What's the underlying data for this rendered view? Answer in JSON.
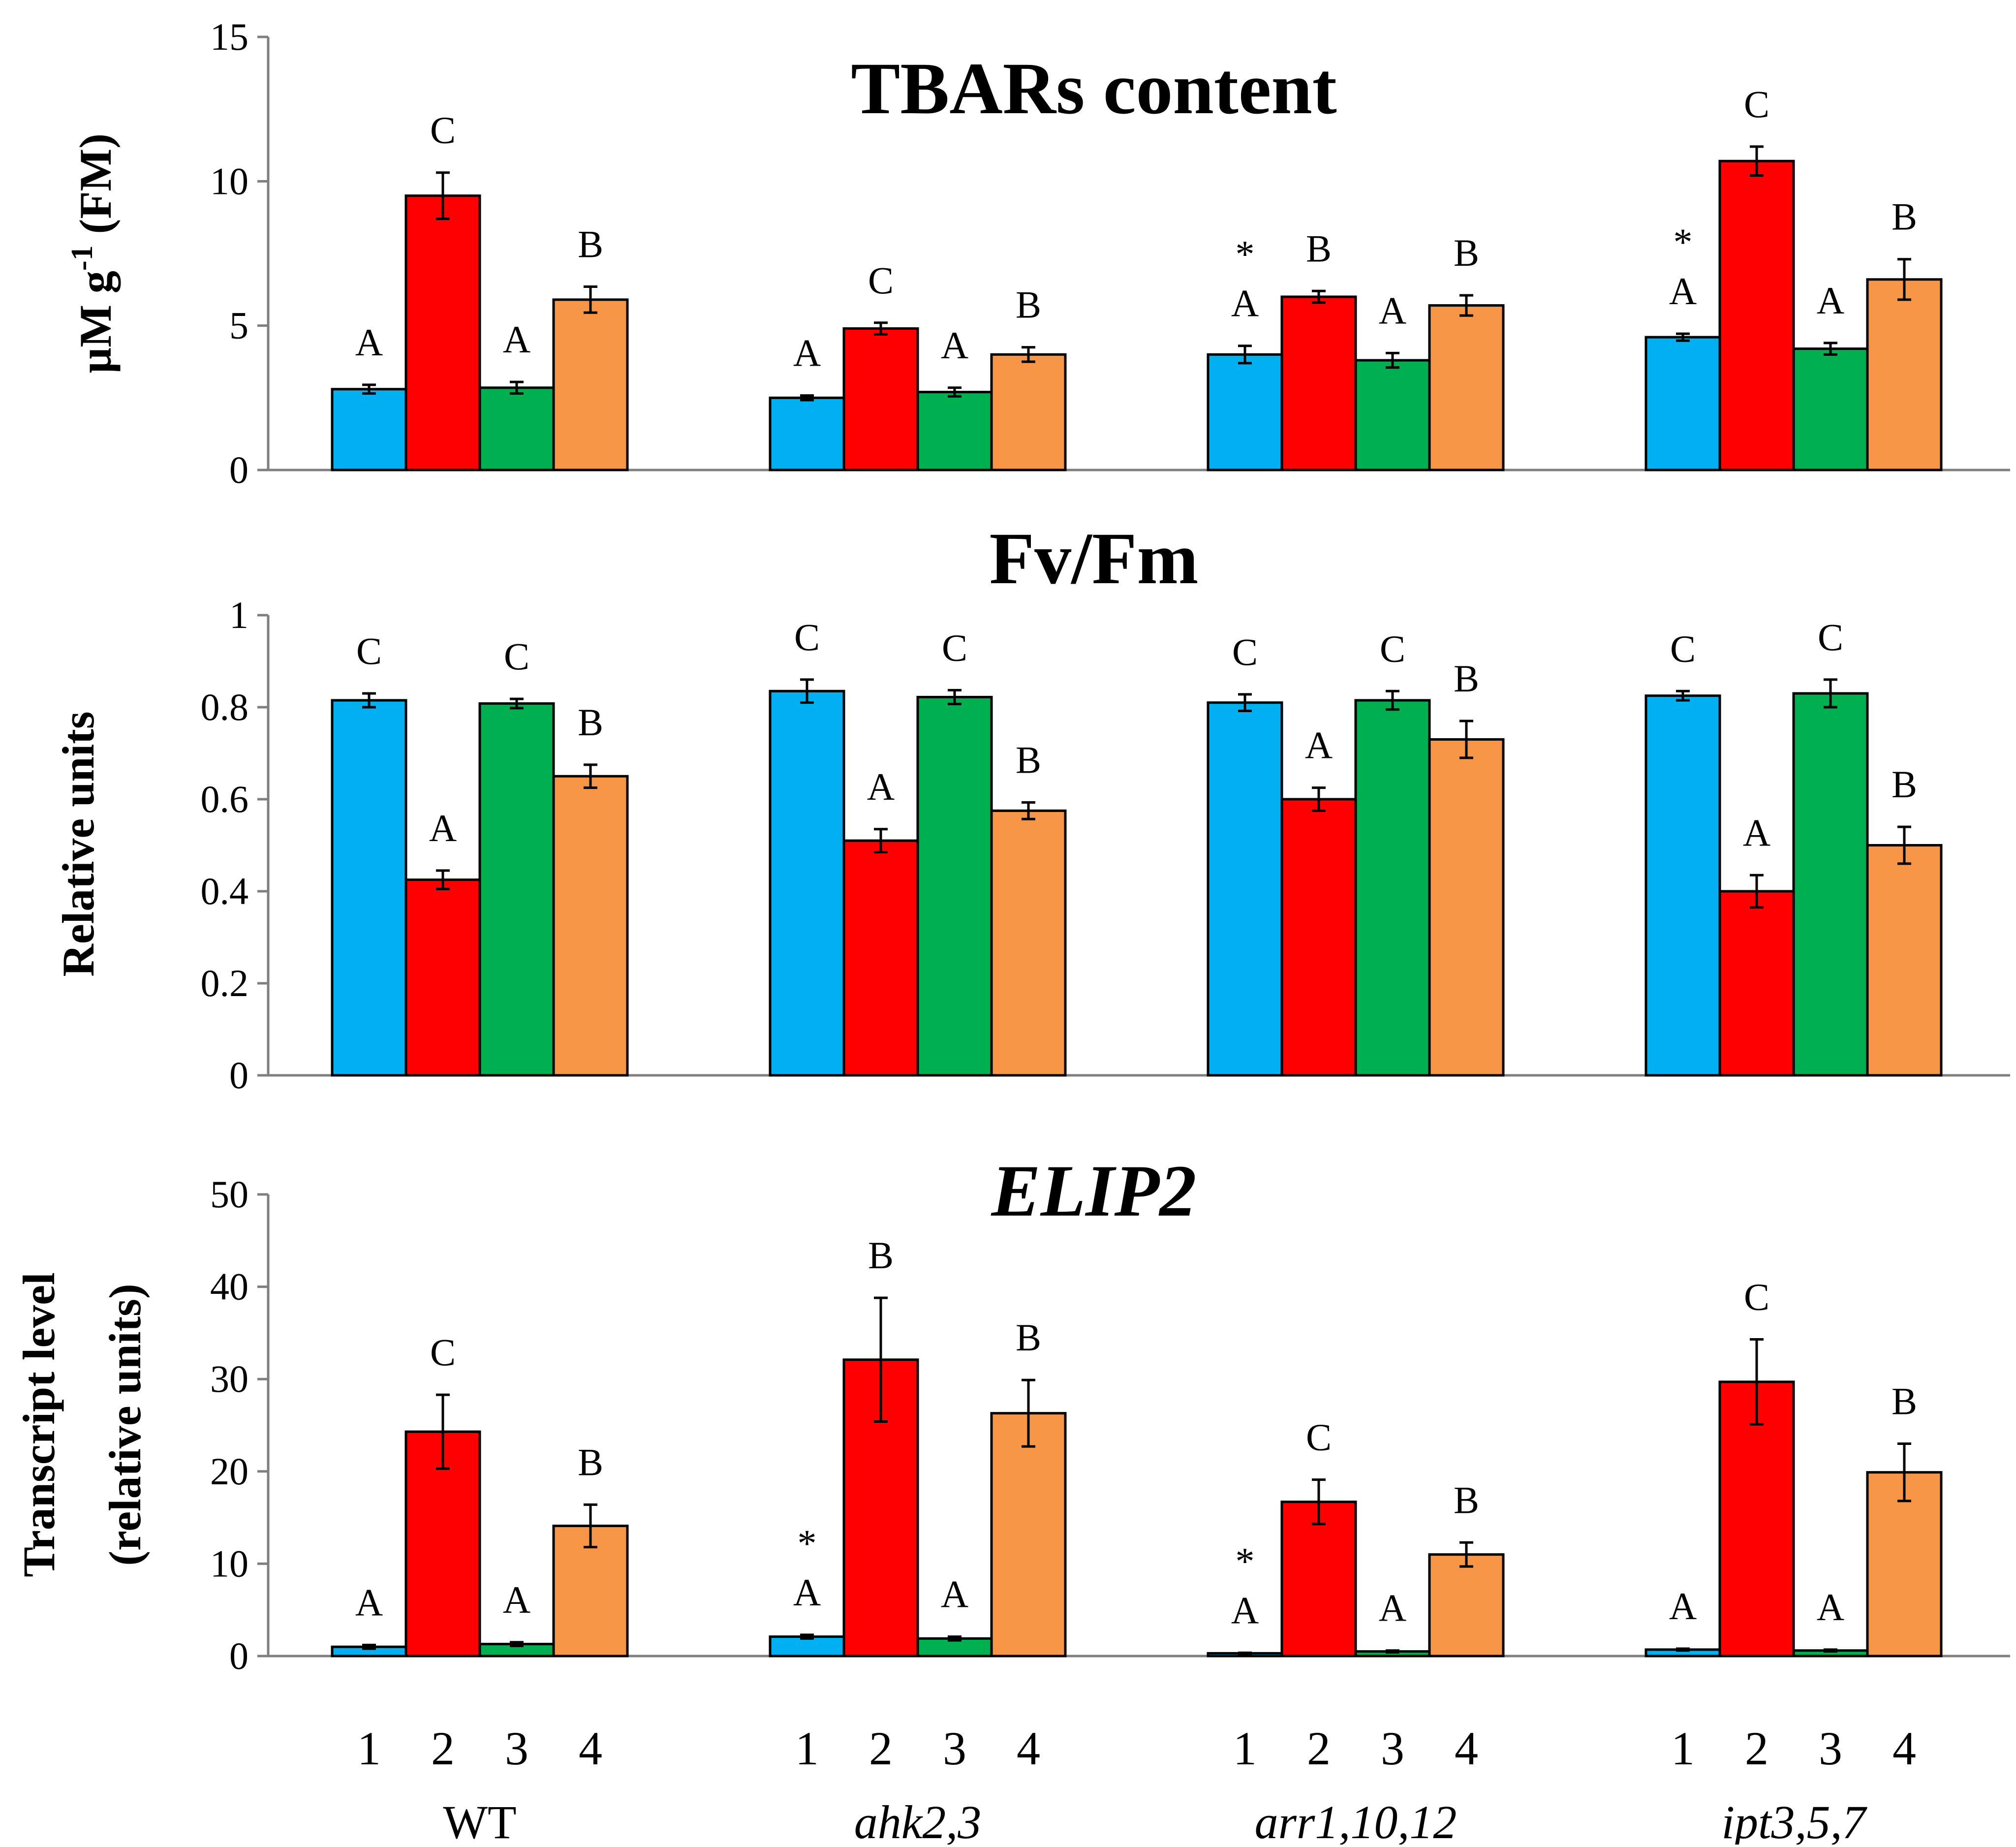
{
  "chart_data": {
    "type": "bar",
    "groups": [
      "WT",
      "ahk2,3",
      "arr1,10,12",
      "ipt3,5,7"
    ],
    "group_italic": [
      false,
      true,
      true,
      true
    ],
    "categories": [
      "1",
      "2",
      "3",
      "4"
    ],
    "colors": [
      "#00b0f0",
      "#ff0000",
      "#00b050",
      "#f79646"
    ],
    "panels": [
      {
        "title": "TBARs content",
        "title_italic": false,
        "ylabel": [
          "µM g-1 (FM)"
        ],
        "ylabel_parts": {
          "base": "µM g",
          "sup": "-1",
          "tail": " (FM)"
        },
        "ylim": [
          0,
          15
        ],
        "yticks": [
          0,
          5,
          10,
          15
        ],
        "ytick_labels": [
          "0",
          "5",
          "10",
          "15"
        ],
        "values": [
          [
            2.8,
            9.5,
            2.85,
            5.9
          ],
          [
            2.5,
            4.9,
            2.7,
            4.0
          ],
          [
            4.0,
            6.0,
            3.8,
            5.7
          ],
          [
            4.6,
            10.7,
            4.2,
            6.6
          ]
        ],
        "errors": [
          [
            0.15,
            0.8,
            0.2,
            0.45
          ],
          [
            0.08,
            0.2,
            0.15,
            0.25
          ],
          [
            0.3,
            0.2,
            0.25,
            0.35
          ],
          [
            0.12,
            0.5,
            0.2,
            0.7
          ]
        ],
        "letters": [
          [
            "A",
            "C",
            "A",
            "B"
          ],
          [
            "A",
            "C",
            "A",
            "B"
          ],
          [
            "A",
            "B",
            "A",
            "B"
          ],
          [
            "A",
            "C",
            "A",
            "B"
          ]
        ],
        "stars": [
          [
            "",
            "",
            "",
            ""
          ],
          [
            "",
            "",
            "",
            ""
          ],
          [
            "*",
            "",
            "",
            ""
          ],
          [
            "*",
            "",
            "",
            ""
          ]
        ]
      },
      {
        "title": "Fv/Fm",
        "title_italic": false,
        "ylabel": [
          "Relative units"
        ],
        "ylim": [
          0,
          1
        ],
        "yticks": [
          0,
          0.2,
          0.4,
          0.6,
          0.8,
          1.0
        ],
        "ytick_labels": [
          "0",
          "0.2",
          "0.4",
          "0.6",
          "0.8",
          "1"
        ],
        "values": [
          [
            0.815,
            0.425,
            0.808,
            0.65
          ],
          [
            0.835,
            0.51,
            0.822,
            0.575
          ],
          [
            0.81,
            0.6,
            0.815,
            0.73
          ],
          [
            0.825,
            0.4,
            0.83,
            0.5
          ]
        ],
        "errors": [
          [
            0.015,
            0.02,
            0.01,
            0.025
          ],
          [
            0.025,
            0.025,
            0.015,
            0.018
          ],
          [
            0.018,
            0.025,
            0.02,
            0.04
          ],
          [
            0.01,
            0.035,
            0.03,
            0.04
          ]
        ],
        "letters": [
          [
            "C",
            "A",
            "C",
            "B"
          ],
          [
            "C",
            "A",
            "C",
            "B"
          ],
          [
            "C",
            "A",
            "C",
            "B"
          ],
          [
            "C",
            "A",
            "C",
            "B"
          ]
        ],
        "stars": [
          [
            "",
            "",
            "",
            ""
          ],
          [
            "",
            "",
            "",
            ""
          ],
          [
            "",
            "",
            "",
            ""
          ],
          [
            "",
            "",
            "",
            ""
          ]
        ]
      },
      {
        "title": "ELIP2",
        "title_italic": true,
        "ylabel": [
          "Transcript level",
          "(relative units)"
        ],
        "ylim": [
          0,
          50
        ],
        "yticks": [
          0,
          10,
          20,
          30,
          40,
          50
        ],
        "ytick_labels": [
          "0",
          "10",
          "20",
          "30",
          "40",
          "50"
        ],
        "values": [
          [
            1.0,
            24.3,
            1.3,
            14.1
          ],
          [
            2.1,
            32.1,
            1.9,
            26.3
          ],
          [
            0.3,
            16.7,
            0.5,
            11.0
          ],
          [
            0.7,
            29.7,
            0.6,
            19.9
          ]
        ],
        "errors": [
          [
            0.2,
            4.0,
            0.2,
            2.3
          ],
          [
            0.2,
            6.7,
            0.2,
            3.6
          ],
          [
            0.05,
            2.4,
            0.1,
            1.3
          ],
          [
            0.1,
            4.6,
            0.1,
            3.1
          ]
        ],
        "letters": [
          [
            "A",
            "C",
            "A",
            "B"
          ],
          [
            "A",
            "B",
            "A",
            "B"
          ],
          [
            "A",
            "C",
            "A",
            "B"
          ],
          [
            "A",
            "C",
            "A",
            "B"
          ]
        ],
        "stars": [
          [
            "",
            "",
            "",
            ""
          ],
          [
            "*",
            "",
            "",
            ""
          ],
          [
            "*",
            "",
            "",
            ""
          ],
          [
            "",
            "",
            "",
            ""
          ]
        ]
      }
    ]
  }
}
